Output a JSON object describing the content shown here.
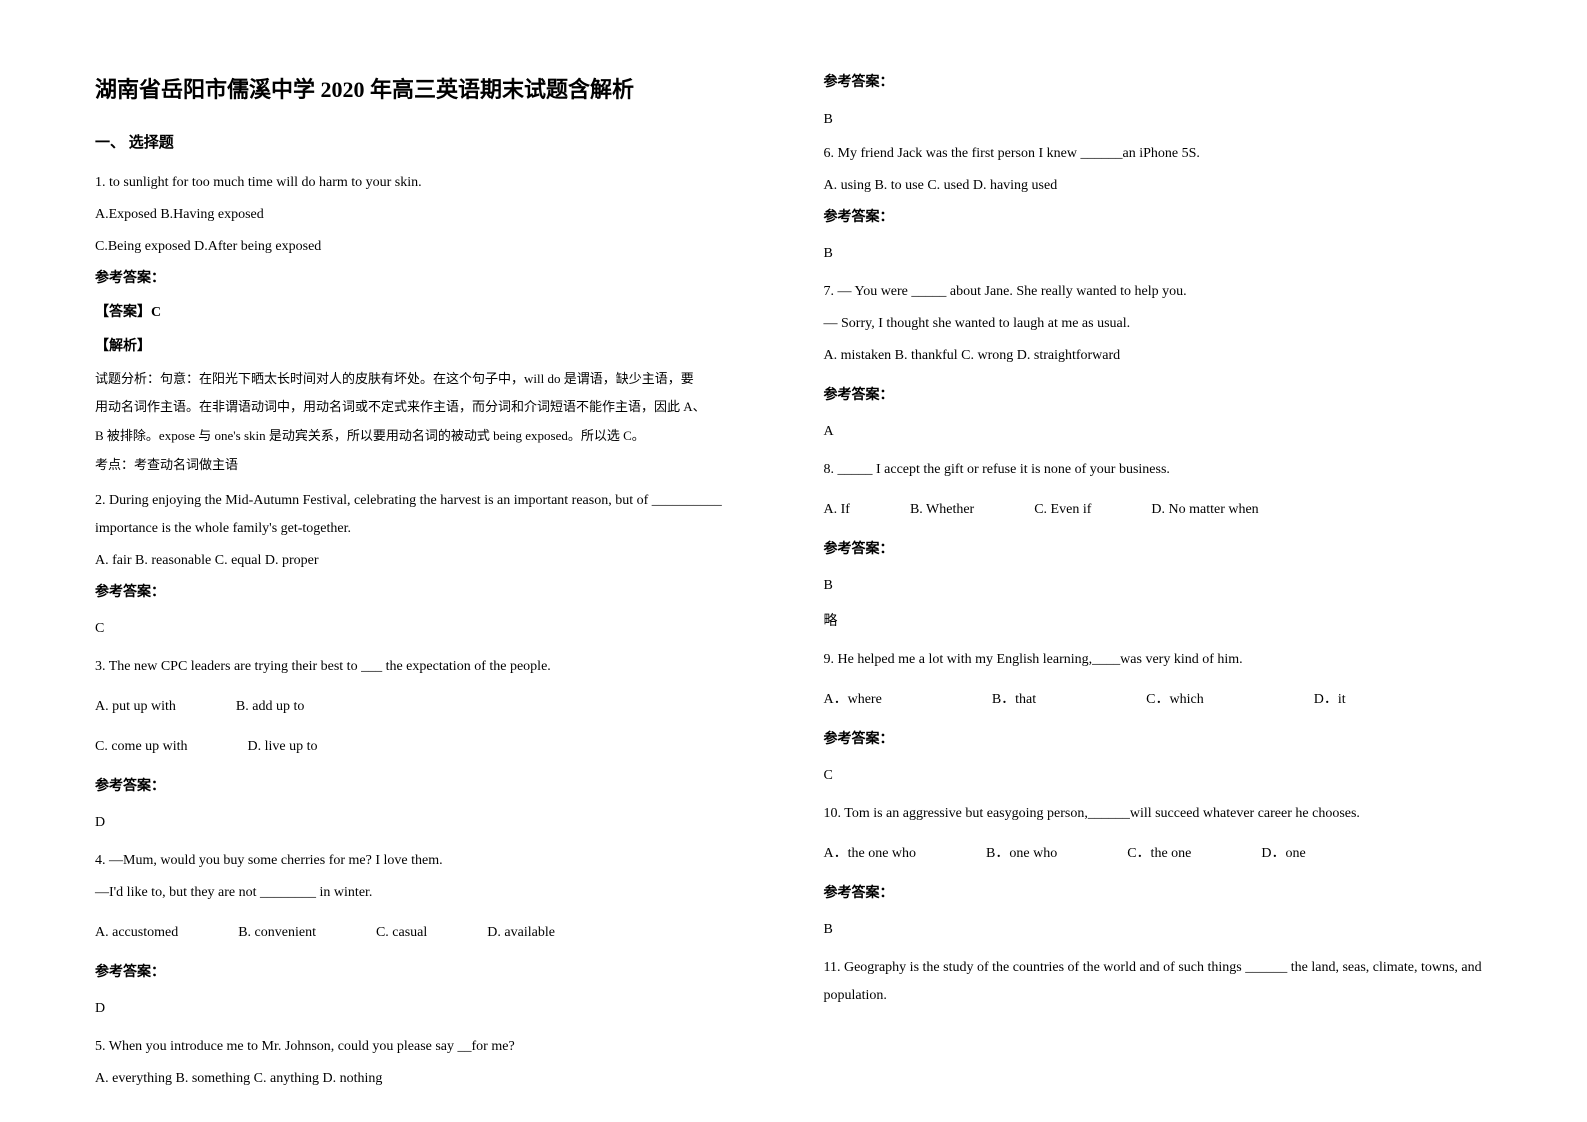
{
  "title": "湖南省岳阳市儒溪中学 2020 年高三英语期末试题含解析",
  "section1_heading": "一、 选择题",
  "answer_label": "参考答案：",
  "left": {
    "q1": {
      "num": "1.",
      "stem": "            to sunlight for too much time will do harm to your skin.",
      "opts_line1": "  A.Exposed     B.Having exposed",
      "opts_line2": "C.Being exposed    D.After being exposed",
      "ans_header": "【答案】C",
      "exp_header": "【解析】",
      "exp1": "试题分析：句意：在阳光下晒太长时间对人的皮肤有坏处。在这个句子中，will do 是谓语，缺少主语，要",
      "exp2": "用动名词作主语。在非谓语动词中，用动名词或不定式来作主语，而分词和介词短语不能作主语，因此 A、",
      "exp3": "B 被排除。expose 与 one's skin 是动宾关系，所以要用动名词的被动式 being exposed。所以选 C。",
      "exp4": "考点：考查动名词做主语"
    },
    "q2": {
      "text": "2. During enjoying the Mid-Autumn Festival, celebrating the harvest is an important reason, but of __________ importance is the whole family's get-together.",
      "opts": "  A. fair        B. reasonable     C. equal          D. proper",
      "ans": "C"
    },
    "q3": {
      "text": "3. The new CPC leaders are trying their best to ___ the expectation of the people.",
      "optA": "A. put up with",
      "optB": "B. add up to",
      "optC": "C. come up with",
      "optD": "D. live up to",
      "ans": "D"
    },
    "q4": {
      "line1": "4. —Mum, would you buy some cherries for me? I love them.",
      "line2": "—I'd like to, but they are not ________ in winter.",
      "optA": " A. accustomed",
      "optB": "B. convenient",
      "optC": "C. casual",
      "optD": "D. available",
      "ans": "D"
    },
    "q5": {
      "text": "5. When you introduce me to Mr. Johnson, could you please say __for me?",
      "opts": "A. everything     B. something     C. anything     D. nothing"
    }
  },
  "right": {
    "q5_ans": "B",
    "q6": {
      "text": "6. My friend Jack was the first person I knew ______an iPhone 5S.",
      "opts": "    A. using      B. to use      C. used          D. having used",
      "ans": "B"
    },
    "q7": {
      "line1": "7. — You were _____ about Jane. She really wanted to help you.",
      "line2": "— Sorry, I thought she wanted to laugh at me as usual.",
      "opts": "A. mistaken      B. thankful     C. wrong       D. straightforward",
      "ans": "A"
    },
    "q8": {
      "text": "8. _____ I accept the gift or refuse it is none of your business.",
      "optA": "    A. If",
      "optB": "B. Whether",
      "optC": "C. Even if",
      "optD": "D. No matter when",
      "ans": "B",
      "note": "略"
    },
    "q9": {
      "text": "9. He helped me a lot with my English learning,____was very kind of him.",
      "optA": "      A．where",
      "optB": "B．that",
      "optC": "C．which",
      "optD": "D．it",
      "ans": "C"
    },
    "q10": {
      "text": "10. Tom is an aggressive but easygoing person,______will succeed whatever career he chooses.",
      "optA": "      A．the one who",
      "optB": "B．one who",
      "optC": "C．the one",
      "optD": "D．one",
      "ans": "B"
    },
    "q11": {
      "text": "11. Geography is the study of the countries of the world and of such things ______ the land, seas, climate, towns, and population."
    }
  }
}
